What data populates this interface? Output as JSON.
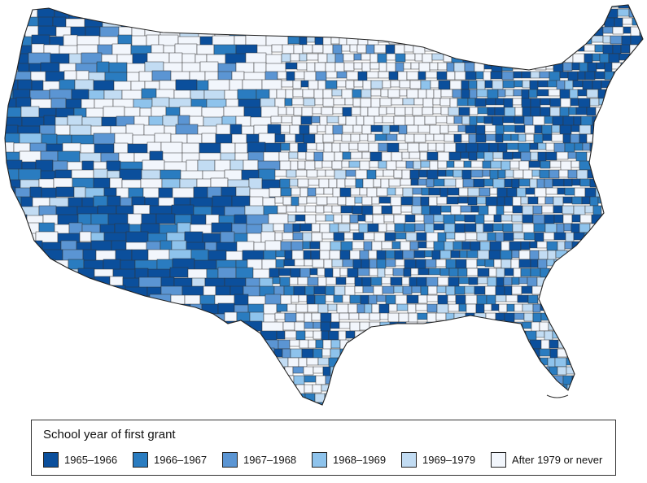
{
  "legend": {
    "title": "School year of first grant",
    "items": [
      {
        "label": "1965–1966",
        "color": "#0b4f9c"
      },
      {
        "label": "1966–1967",
        "color": "#2a7cc0"
      },
      {
        "label": "1967–1968",
        "color": "#5b95d3"
      },
      {
        "label": "1968–1969",
        "color": "#8ec3ec"
      },
      {
        "label": "1969–1979",
        "color": "#c2dcf3"
      },
      {
        "label": "After 1979 or never",
        "color": "#f2f6fc"
      }
    ]
  },
  "map": {
    "region": "contiguous United States",
    "unit": "county",
    "border_color": "#333333"
  }
}
